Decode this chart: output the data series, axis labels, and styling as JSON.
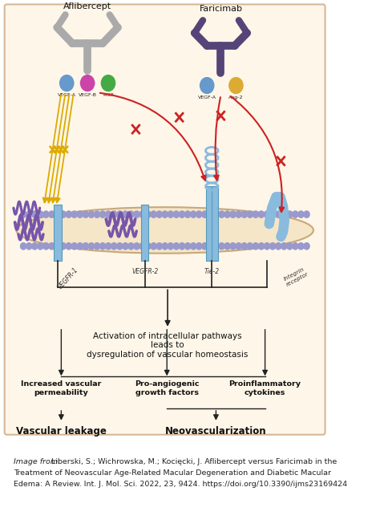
{
  "title": "",
  "figsize": [
    4.74,
    6.63
  ],
  "dpi": 100,
  "bg_color": "#ffffff",
  "citation_line1": "Image from: Liberski, S.; Wichrowska, M.; Kocięcki, J. Aflibercept versus Faricimab in the",
  "citation_line2": "Treatment of Neovascular Age-Related Macular Degeneration and Diabetic Macular",
  "citation_line3": "Edema: A Review. Int. J. Mol. Sci. 2022, 23, 9424. https://doi.org/10.3390/ijms23169424",
  "membrane_color": "#f5e6c8",
  "membrane_border_color": "#c8a878",
  "bead_color": "#9999cc",
  "receptor_color": "#88bbdd",
  "vegf_ligand_color": "#7755aa",
  "aflibercept_color": "#aaaaaa",
  "faricimab_color": "#554477",
  "arrow_inhibit_color": "#cc2222",
  "arrow_yellow_color": "#ddaa00",
  "vegfa_color": "#6699cc",
  "vegfb_color": "#cc44aa",
  "pigf_color": "#44aa44",
  "ang2_color": "#ddaa33"
}
